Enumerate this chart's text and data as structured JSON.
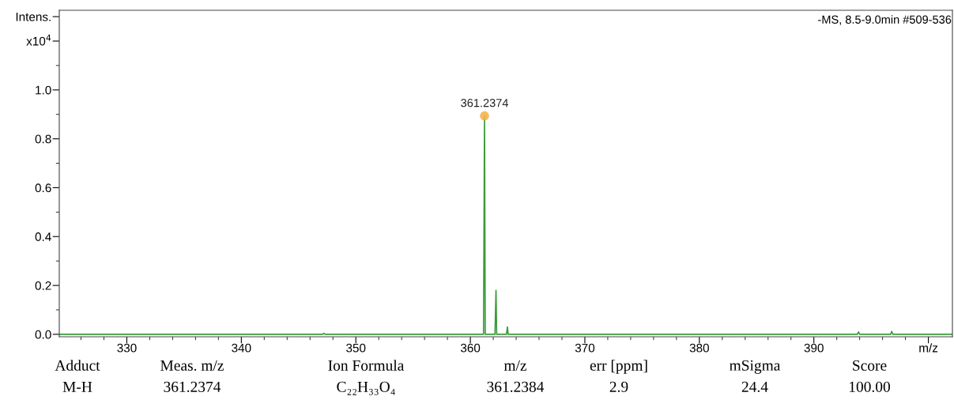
{
  "chart_data": {
    "type": "line",
    "xlim": [
      324.1,
      402.1
    ],
    "ylim": [
      -0.01,
      1.326
    ],
    "xticks": [
      {
        "value": 326,
        "label": null
      },
      {
        "value": 328,
        "label": null
      },
      330,
      {
        "value": 332,
        "label": null
      },
      {
        "value": 334,
        "label": null
      },
      {
        "value": 336,
        "label": null
      },
      {
        "value": 338,
        "label": null
      },
      340,
      {
        "value": 342,
        "label": null
      },
      {
        "value": 344,
        "label": null
      },
      {
        "value": 346,
        "label": null
      },
      {
        "value": 348,
        "label": null
      },
      350,
      {
        "value": 352,
        "label": null
      },
      {
        "value": 354,
        "label": null
      },
      {
        "value": 356,
        "label": null
      },
      {
        "value": 358,
        "label": null
      },
      360,
      {
        "value": 362,
        "label": null
      },
      {
        "value": 364,
        "label": null
      },
      {
        "value": 366,
        "label": null
      },
      {
        "value": 368,
        "label": null
      },
      370,
      {
        "value": 372,
        "label": null
      },
      {
        "value": 374,
        "label": null
      },
      {
        "value": 376,
        "label": null
      },
      {
        "value": 378,
        "label": null
      },
      380,
      {
        "value": 382,
        "label": null
      },
      {
        "value": 384,
        "label": null
      },
      {
        "value": 386,
        "label": null
      },
      {
        "value": 388,
        "label": null
      },
      390,
      {
        "value": 392,
        "label": null
      },
      {
        "value": 394,
        "label": null
      },
      {
        "value": 396,
        "label": null
      },
      {
        "value": 398,
        "label": null
      },
      {
        "value": 400,
        "label": "m/z"
      }
    ],
    "yticks": [
      {
        "value": 0,
        "label": "0.0"
      },
      {
        "value": 0.1,
        "label": null
      },
      0.2,
      {
        "value": 0.3,
        "label": null
      },
      0.4,
      {
        "value": 0.5,
        "label": null
      },
      0.6,
      {
        "value": 0.7,
        "label": null
      },
      0.8,
      {
        "value": 0.9,
        "label": null
      },
      {
        "value": 1,
        "label": "1.0"
      },
      {
        "value": 1.1,
        "label": null
      },
      {
        "value": 1.2,
        "label": "x10$^{4}$"
      },
      {
        "value": 1.3,
        "label": "Intens."
      }
    ],
    "grid": false,
    "legend": false,
    "series": [
      {
        "color": "#3a9c3a",
        "marker": "none",
        "x": [
          324.1,
          347.1,
          347.2,
          347.3,
          361.15,
          361.2374,
          361.3,
          362.15,
          362.24,
          362.3,
          363.15,
          363.24,
          363.3,
          393.8,
          393.9,
          394.0,
          396.7,
          396.8,
          396.9,
          402.1
        ],
        "values": [
          0,
          0,
          0.004,
          0,
          0,
          0.894,
          0,
          0,
          0.18,
          0,
          0,
          0.03,
          0,
          0,
          0.01,
          0,
          0,
          0.012,
          0,
          0
        ]
      },
      {
        "type": "scatter",
        "color": "#f5b041",
        "marker": "circle",
        "x": [
          361.2374
        ],
        "values": [
          0.894
        ]
      }
    ],
    "annotations": [
      {
        "text": "361.2374",
        "x": 361.2374,
        "y": 0.894
      },
      "-MS, 8.5-9.0min #509-536",
      "Adduct",
      "Meas. m/z",
      "Ion Formula",
      "m/z",
      "err [ppm]",
      "mSigma",
      "Score",
      "M-H",
      "361.2374",
      "C₂₂H₃₃O₄",
      "361.2384",
      "2.9",
      "24.4",
      "100.00"
    ]
  }
}
